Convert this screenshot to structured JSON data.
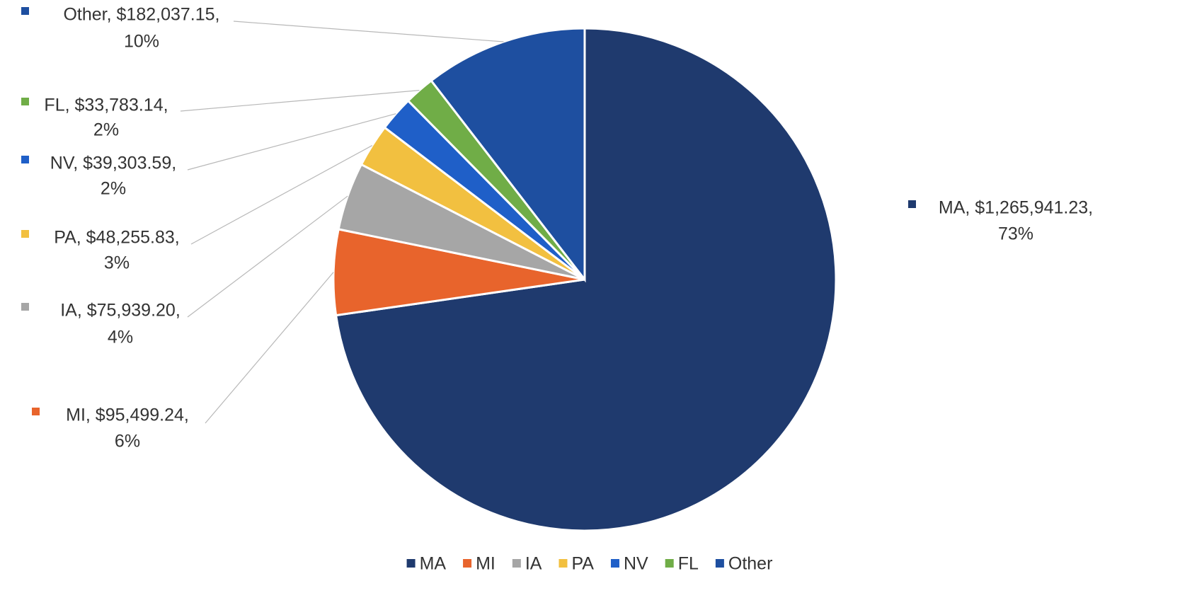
{
  "chart_data": {
    "type": "pie",
    "categories": [
      "MA",
      "MI",
      "IA",
      "PA",
      "NV",
      "FL",
      "Other"
    ],
    "values": [
      1265941.23,
      95499.24,
      75939.2,
      48255.83,
      39303.59,
      33783.14,
      182037.15
    ],
    "value_labels": [
      "MA, $1,265,941.23,",
      "MI, $95,499.24,",
      "IA, $75,939.20,",
      "PA, $48,255.83,",
      "NV, $39,303.59,",
      "FL, $33,783.14,",
      "Other, $182,037.15,"
    ],
    "percent_labels": [
      "73%",
      "6%",
      "4%",
      "3%",
      "2%",
      "2%",
      "10%"
    ],
    "colors": [
      "#1f3a6e",
      "#e8642c",
      "#a6a6a6",
      "#f2c040",
      "#1f5fc8",
      "#70ad47",
      "#1e4fa0"
    ],
    "legend": "bottom"
  }
}
